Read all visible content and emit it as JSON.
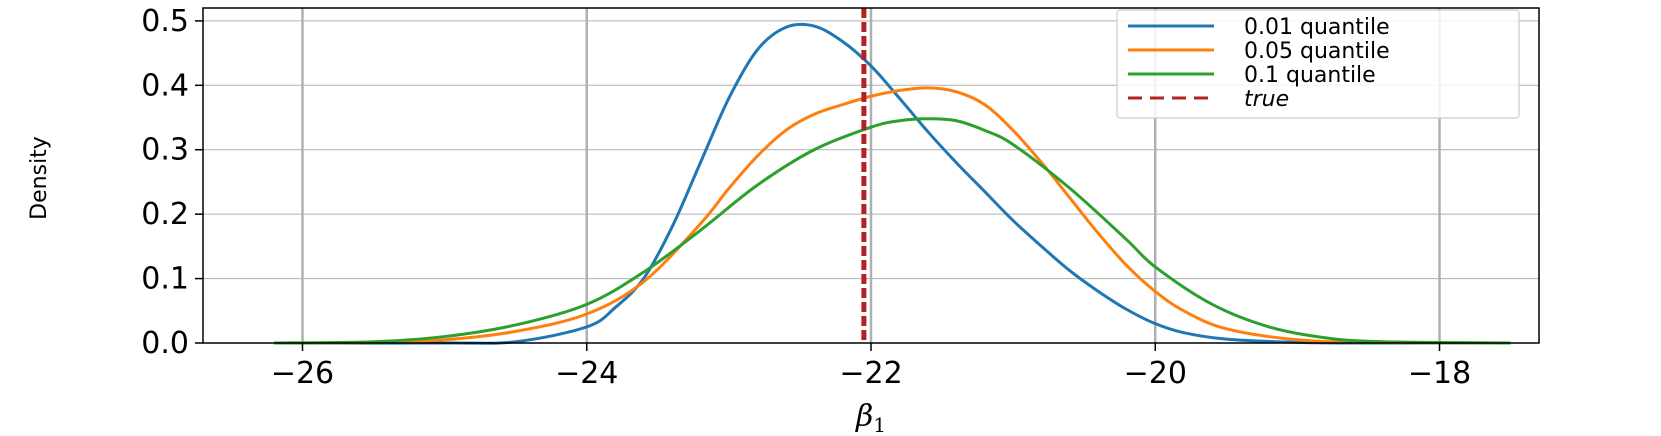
{
  "chart_data": {
    "type": "line",
    "xlabel": "β",
    "xlabel_sub": "1",
    "ylabel": "Density",
    "xlim": [
      -26.7,
      -17.3
    ],
    "ylim": [
      0.0,
      0.52
    ],
    "x_ticks": [
      -26,
      -24,
      -22,
      -20,
      -18
    ],
    "x_tick_labels": [
      "−26",
      "−24",
      "−22",
      "−20",
      "−18"
    ],
    "y_ticks": [
      0.0,
      0.1,
      0.2,
      0.3,
      0.4,
      0.5
    ],
    "y_tick_labels": [
      "0.0",
      "0.1",
      "0.2",
      "0.3",
      "0.4",
      "0.5"
    ],
    "grid": true,
    "legend_position": "top-right",
    "series": [
      {
        "name": "0.01 quantile",
        "color": "#1f77b4",
        "style": "solid",
        "x": [
          -26.2,
          -25.0,
          -24.5,
          -24.0,
          -23.8,
          -23.6,
          -23.4,
          -23.2,
          -23.0,
          -22.8,
          -22.6,
          -22.4,
          -22.2,
          -22.0,
          -21.8,
          -21.6,
          -21.4,
          -21.2,
          -21.0,
          -20.8,
          -20.6,
          -20.4,
          -20.2,
          -20.0,
          -19.8,
          -19.5,
          -19.0,
          -18.5,
          -17.5
        ],
        "y": [
          0.0,
          0.0,
          0.002,
          0.025,
          0.055,
          0.1,
          0.18,
          0.28,
          0.38,
          0.455,
          0.49,
          0.492,
          0.468,
          0.43,
          0.38,
          0.328,
          0.28,
          0.235,
          0.19,
          0.15,
          0.112,
          0.08,
          0.052,
          0.03,
          0.016,
          0.006,
          0.001,
          0.0,
          0.0
        ]
      },
      {
        "name": "0.05 quantile",
        "color": "#ff7f0e",
        "style": "solid",
        "x": [
          -26.2,
          -25.5,
          -25.0,
          -24.5,
          -24.0,
          -23.6,
          -23.2,
          -23.0,
          -22.8,
          -22.6,
          -22.4,
          -22.2,
          -22.0,
          -21.8,
          -21.6,
          -21.4,
          -21.2,
          -21.0,
          -20.8,
          -20.6,
          -20.4,
          -20.2,
          -20.0,
          -19.8,
          -19.5,
          -19.0,
          -18.5,
          -17.5
        ],
        "y": [
          0.0,
          0.001,
          0.005,
          0.018,
          0.045,
          0.095,
          0.185,
          0.24,
          0.29,
          0.33,
          0.355,
          0.37,
          0.383,
          0.392,
          0.396,
          0.39,
          0.37,
          0.33,
          0.28,
          0.225,
          0.17,
          0.12,
          0.08,
          0.05,
          0.022,
          0.005,
          0.001,
          0.0
        ]
      },
      {
        "name": "0.1 quantile",
        "color": "#2ca02c",
        "style": "solid",
        "x": [
          -26.2,
          -25.5,
          -25.0,
          -24.5,
          -24.0,
          -23.6,
          -23.2,
          -22.8,
          -22.4,
          -22.0,
          -21.8,
          -21.6,
          -21.4,
          -21.2,
          -21.0,
          -20.6,
          -20.2,
          -20.0,
          -19.6,
          -19.2,
          -18.8,
          -18.4,
          -17.5
        ],
        "y": [
          0.0,
          0.002,
          0.01,
          0.028,
          0.06,
          0.11,
          0.175,
          0.245,
          0.3,
          0.335,
          0.345,
          0.348,
          0.345,
          0.33,
          0.308,
          0.24,
          0.16,
          0.118,
          0.06,
          0.025,
          0.008,
          0.002,
          0.0
        ]
      }
    ],
    "vlines": [
      {
        "name": "true",
        "x": -22.05,
        "color": "#b22222",
        "style": "dashed"
      }
    ]
  }
}
